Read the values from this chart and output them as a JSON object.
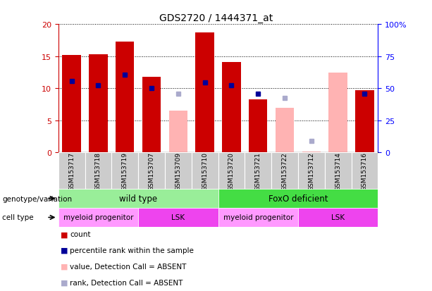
{
  "title": "GDS2720 / 1444371_at",
  "samples": [
    "GSM153717",
    "GSM153718",
    "GSM153719",
    "GSM153707",
    "GSM153709",
    "GSM153710",
    "GSM153720",
    "GSM153721",
    "GSM153722",
    "GSM153712",
    "GSM153714",
    "GSM153716"
  ],
  "count_values": [
    15.2,
    15.3,
    17.3,
    11.8,
    null,
    18.7,
    14.1,
    8.3,
    null,
    null,
    null,
    9.7
  ],
  "count_absent_values": [
    null,
    null,
    null,
    null,
    6.5,
    null,
    null,
    null,
    7.0,
    0.2,
    12.4,
    null
  ],
  "percentile_values": [
    11.1,
    10.5,
    12.1,
    10.0,
    null,
    10.9,
    10.5,
    9.1,
    null,
    null,
    null,
    9.1
  ],
  "percentile_absent_values": [
    null,
    null,
    null,
    null,
    9.2,
    null,
    null,
    null,
    8.5,
    1.8,
    null,
    null
  ],
  "ylim_left": [
    0,
    20
  ],
  "ylim_right": [
    0,
    100
  ],
  "yticks_left": [
    0,
    5,
    10,
    15,
    20
  ],
  "yticks_right": [
    0,
    25,
    50,
    75,
    100
  ],
  "yticklabels_right": [
    "0",
    "25",
    "50",
    "75",
    "100%"
  ],
  "bar_color_count": "#cc0000",
  "bar_color_absent": "#ffb3b3",
  "dot_color_percentile": "#000099",
  "dot_color_absent": "#aaaacc",
  "background_color": "#ffffff",
  "plot_bg_color": "#ffffff",
  "genotype_wt_color": "#99ee99",
  "genotype_fo_color": "#44dd44",
  "cell_myeloid_color": "#ff99ff",
  "cell_lsk_color": "#ee44ee",
  "sample_bg_color": "#cccccc",
  "legend_items": [
    {
      "label": "count",
      "color": "#cc0000"
    },
    {
      "label": "percentile rank within the sample",
      "color": "#000099"
    },
    {
      "label": "value, Detection Call = ABSENT",
      "color": "#ffb3b3"
    },
    {
      "label": "rank, Detection Call = ABSENT",
      "color": "#aaaacc"
    }
  ],
  "genotype_label": "genotype/variation",
  "cell_type_label": "cell type"
}
